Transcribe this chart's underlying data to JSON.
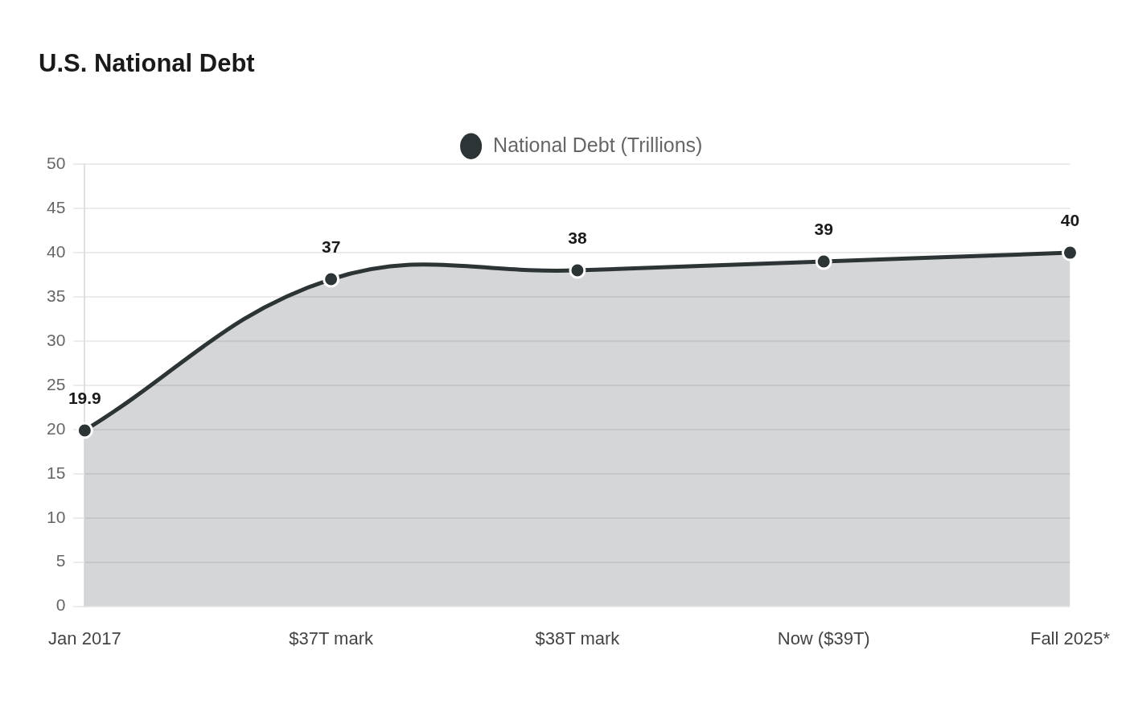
{
  "chart_data": {
    "type": "area",
    "title": "U.S. National Debt",
    "categories": [
      "Jan 2017",
      "$37T mark",
      "$38T mark",
      "Now ($39T)",
      "Fall 2025*"
    ],
    "series": [
      {
        "name": "National Debt (Trillions)",
        "color": "#2d3436",
        "values": [
          19.9,
          37,
          38,
          39,
          40
        ]
      }
    ],
    "ylim": [
      0,
      50
    ],
    "yticks": [
      0,
      5,
      10,
      15,
      20,
      25,
      30,
      35,
      40,
      45,
      50
    ],
    "grid": "y",
    "legend": "top",
    "marker": "circle",
    "data_labels": true
  }
}
